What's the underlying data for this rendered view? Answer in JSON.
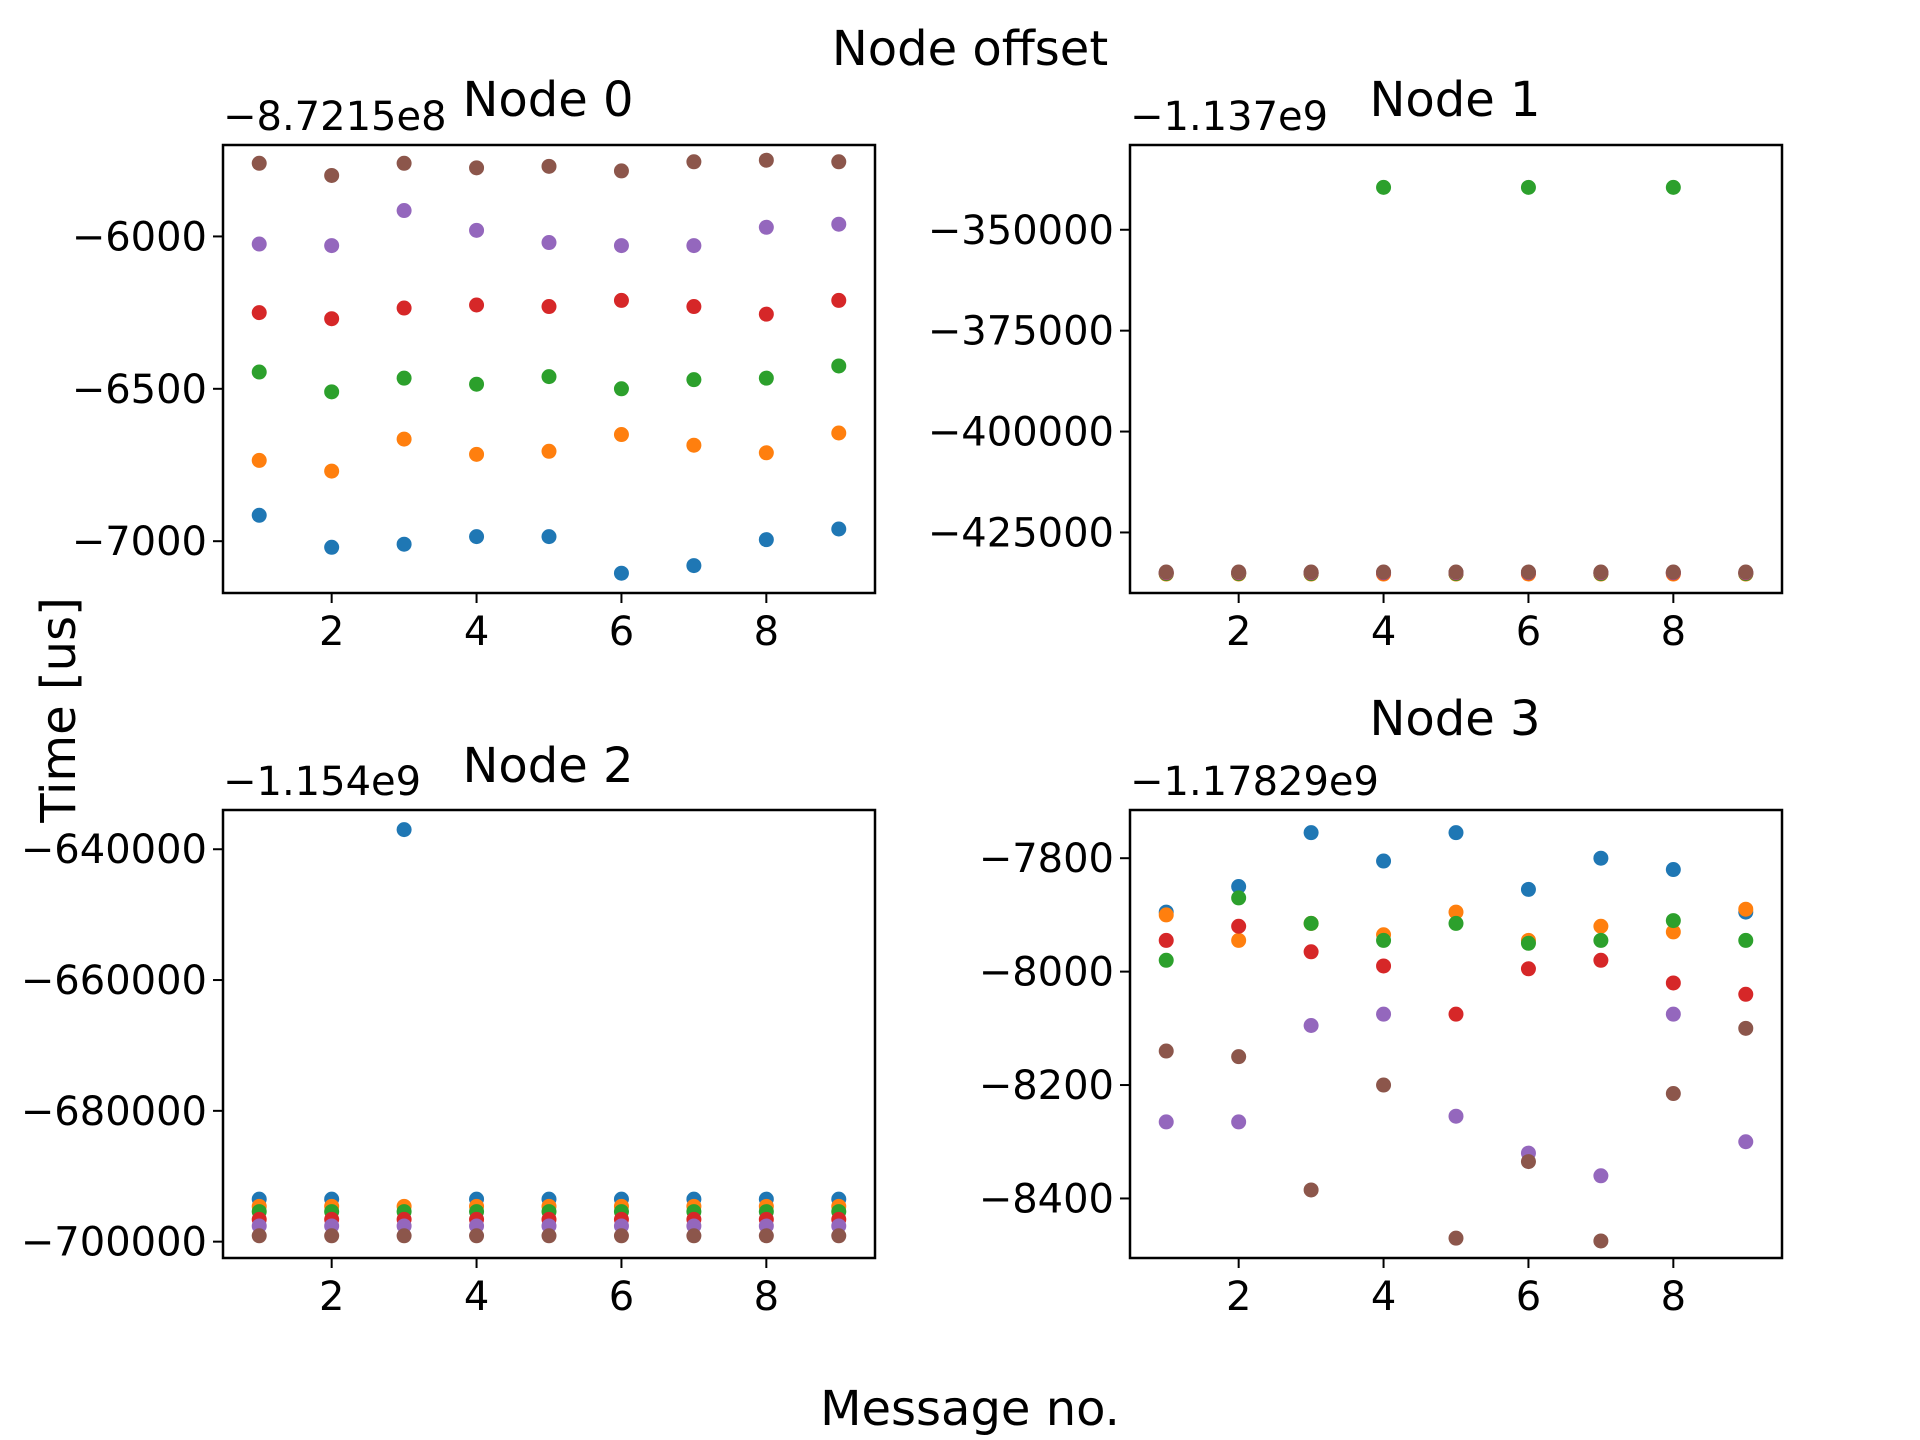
{
  "figure": {
    "title": "Node offset",
    "xlabel": "Message no.",
    "ylabel": "Time [us]"
  },
  "colors": {
    "palette": [
      "#1f77b4",
      "#ff7f0e",
      "#2ca02c",
      "#d62728",
      "#9467bd",
      "#8c564b"
    ]
  },
  "chart_data": [
    {
      "type": "scatter",
      "title": "Node 0",
      "offset_label": "−8.7215e8",
      "x": [
        1,
        2,
        3,
        4,
        5,
        6,
        7,
        8,
        9
      ],
      "xlim": [
        0.5,
        9.5
      ],
      "xticks": [
        2,
        4,
        6,
        8
      ],
      "xtick_labels": [
        "2",
        "4",
        "6",
        "8"
      ],
      "ylim": [
        -7170,
        -5700
      ],
      "yticks": [
        -7000,
        -6500,
        -6000
      ],
      "ytick_labels": [
        "−7000",
        "−6500",
        "−6000"
      ],
      "series": [
        {
          "values": [
            -6915,
            -7020,
            -7010,
            -6985,
            -6985,
            -7105,
            -7080,
            -6995,
            -6960
          ]
        },
        {
          "values": [
            -6735,
            -6770,
            -6665,
            -6715,
            -6705,
            -6650,
            -6685,
            -6710,
            -6645
          ]
        },
        {
          "values": [
            -6445,
            -6510,
            -6465,
            -6485,
            -6460,
            -6500,
            -6470,
            -6465,
            -6425
          ]
        },
        {
          "values": [
            -6250,
            -6270,
            -6235,
            -6225,
            -6230,
            -6210,
            -6230,
            -6255,
            -6210
          ]
        },
        {
          "values": [
            -6025,
            -6030,
            -5915,
            -5980,
            -6020,
            -6030,
            -6030,
            -5970,
            -5960
          ]
        },
        {
          "values": [
            -5760,
            -5800,
            -5760,
            -5775,
            -5770,
            -5785,
            -5755,
            -5750,
            -5755
          ]
        }
      ]
    },
    {
      "type": "scatter",
      "title": "Node 1",
      "offset_label": "−1.137e9",
      "x": [
        1,
        2,
        3,
        4,
        5,
        6,
        7,
        8,
        9
      ],
      "xlim": [
        0.5,
        9.5
      ],
      "xticks": [
        2,
        4,
        6,
        8
      ],
      "xtick_labels": [
        "2",
        "4",
        "6",
        "8"
      ],
      "ylim": [
        -440000,
        -329000
      ],
      "yticks": [
        -425000,
        -400000,
        -375000,
        -350000
      ],
      "ytick_labels": [
        "−425000",
        "−400000",
        "−375000",
        "−350000"
      ],
      "series": [
        {
          "values": [
            -435100,
            -435100,
            -435100,
            -435100,
            -435100,
            -435100,
            -435100,
            -435100,
            -435100
          ]
        },
        {
          "values": [
            -435300,
            -435300,
            -435300,
            -435300,
            -435300,
            -435300,
            -435300,
            -435300,
            -435300
          ]
        },
        {
          "values": [
            -435200,
            -435200,
            -435200,
            -339500,
            -435200,
            -339500,
            -435200,
            -339500,
            -435200
          ]
        },
        {
          "values": [
            -435000,
            -435000,
            -435000,
            -435000,
            -435000,
            -435000,
            -435000,
            -435000,
            -435000
          ]
        },
        {
          "values": [
            -434900,
            -434900,
            -434900,
            -434900,
            -434900,
            -434900,
            -434900,
            -434900,
            -434900
          ]
        },
        {
          "values": [
            -434800,
            -434800,
            -434800,
            -434800,
            -434800,
            -434800,
            -434800,
            -434800,
            -434800
          ]
        }
      ]
    },
    {
      "type": "scatter",
      "title": "Node 2",
      "offset_label": "−1.154e9",
      "x": [
        1,
        2,
        3,
        4,
        5,
        6,
        7,
        8,
        9
      ],
      "xlim": [
        0.5,
        9.5
      ],
      "xticks": [
        2,
        4,
        6,
        8
      ],
      "xtick_labels": [
        "2",
        "4",
        "6",
        "8"
      ],
      "ylim": [
        -702500,
        -634000
      ],
      "yticks": [
        -700000,
        -680000,
        -660000,
        -640000
      ],
      "ytick_labels": [
        "−700000",
        "−680000",
        "−660000",
        "−640000"
      ],
      "series": [
        {
          "values": [
            -693500,
            -693500,
            -637000,
            -693500,
            -693500,
            -693500,
            -693500,
            -693500,
            -693500
          ]
        },
        {
          "values": [
            -694600,
            -694600,
            -694600,
            -694600,
            -694600,
            -694600,
            -694600,
            -694600,
            -694600
          ]
        },
        {
          "values": [
            -695400,
            -695400,
            -695400,
            -695400,
            -695400,
            -695400,
            -695400,
            -695400,
            -695400
          ]
        },
        {
          "values": [
            -696600,
            -696600,
            -696600,
            -696600,
            -696600,
            -696600,
            -696600,
            -696600,
            -696600
          ]
        },
        {
          "values": [
            -697600,
            -697600,
            -697600,
            -697600,
            -697600,
            -697600,
            -697600,
            -697600,
            -697600
          ]
        },
        {
          "values": [
            -699100,
            -699100,
            -699100,
            -699100,
            -699100,
            -699100,
            -699100,
            -699100,
            -699100
          ]
        }
      ]
    },
    {
      "type": "scatter",
      "title": "Node 3",
      "offset_label": "−1.17829e9",
      "x": [
        1,
        2,
        3,
        4,
        5,
        6,
        7,
        8,
        9
      ],
      "xlim": [
        0.5,
        9.5
      ],
      "xticks": [
        2,
        4,
        6,
        8
      ],
      "xtick_labels": [
        "2",
        "4",
        "6",
        "8"
      ],
      "ylim": [
        -8505,
        -7715
      ],
      "yticks": [
        -8400,
        -8200,
        -8000,
        -7800
      ],
      "ytick_labels": [
        "−8400",
        "−8200",
        "−8000",
        "−7800"
      ],
      "series": [
        {
          "values": [
            -7895,
            -7850,
            -7755,
            -7805,
            -7755,
            -7855,
            -7800,
            -7820,
            -7895
          ]
        },
        {
          "values": [
            -7900,
            -7945,
            -7915,
            -7935,
            -7895,
            -7945,
            -7920,
            -7930,
            -7890
          ]
        },
        {
          "values": [
            -7980,
            -7870,
            -7915,
            -7945,
            -7915,
            -7950,
            -7945,
            -7910,
            -7945
          ]
        },
        {
          "values": [
            -7945,
            -7920,
            -7965,
            -7990,
            -8075,
            -7995,
            -7980,
            -8020,
            -8040
          ]
        },
        {
          "values": [
            -8265,
            -8265,
            -8095,
            -8075,
            -8255,
            -8320,
            -8360,
            -8075,
            -8300
          ]
        },
        {
          "values": [
            -8140,
            -8150,
            -8385,
            -8200,
            -8470,
            -8335,
            -8475,
            -8215,
            -8100
          ]
        }
      ]
    }
  ]
}
